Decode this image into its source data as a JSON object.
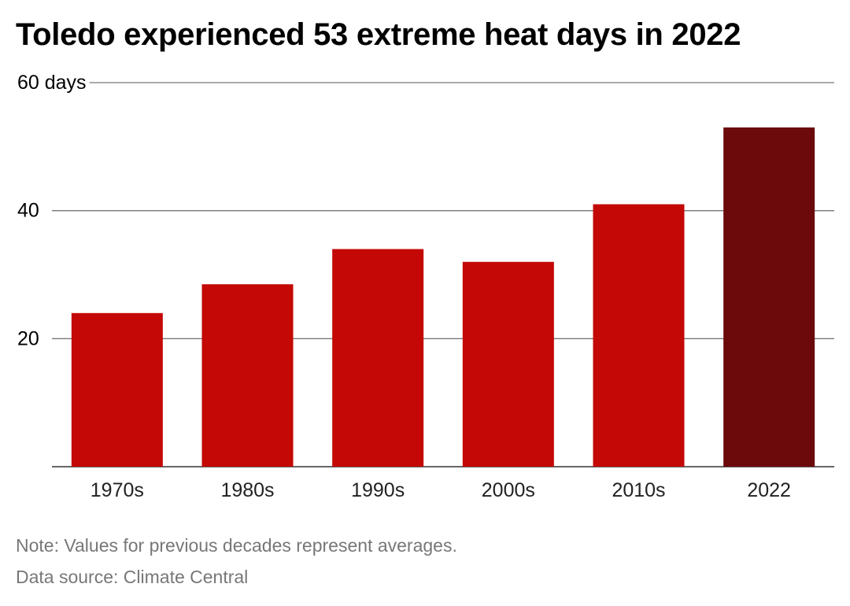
{
  "chart_data": {
    "type": "bar",
    "title": "Toledo experienced 53 extreme heat days in 2022",
    "categories": [
      "1970s",
      "1980s",
      "1990s",
      "2000s",
      "2010s",
      "2022"
    ],
    "values": [
      24,
      28.5,
      34,
      32,
      41,
      53
    ],
    "y_ticks": [
      {
        "value": 20,
        "label": "20"
      },
      {
        "value": 40,
        "label": "40"
      },
      {
        "value": 60,
        "label": "60 days"
      }
    ],
    "ylim": [
      0,
      60
    ],
    "xlabel": "",
    "ylabel": "",
    "grid": true,
    "colors": {
      "bar": "#c30805",
      "highlight": "#6b090b",
      "gridline": "#777777",
      "axis": "#333333"
    },
    "highlight_category": "2022"
  },
  "footer": {
    "note": "Note: Values for previous decades represent averages.",
    "source": "Data source: Climate Central"
  }
}
